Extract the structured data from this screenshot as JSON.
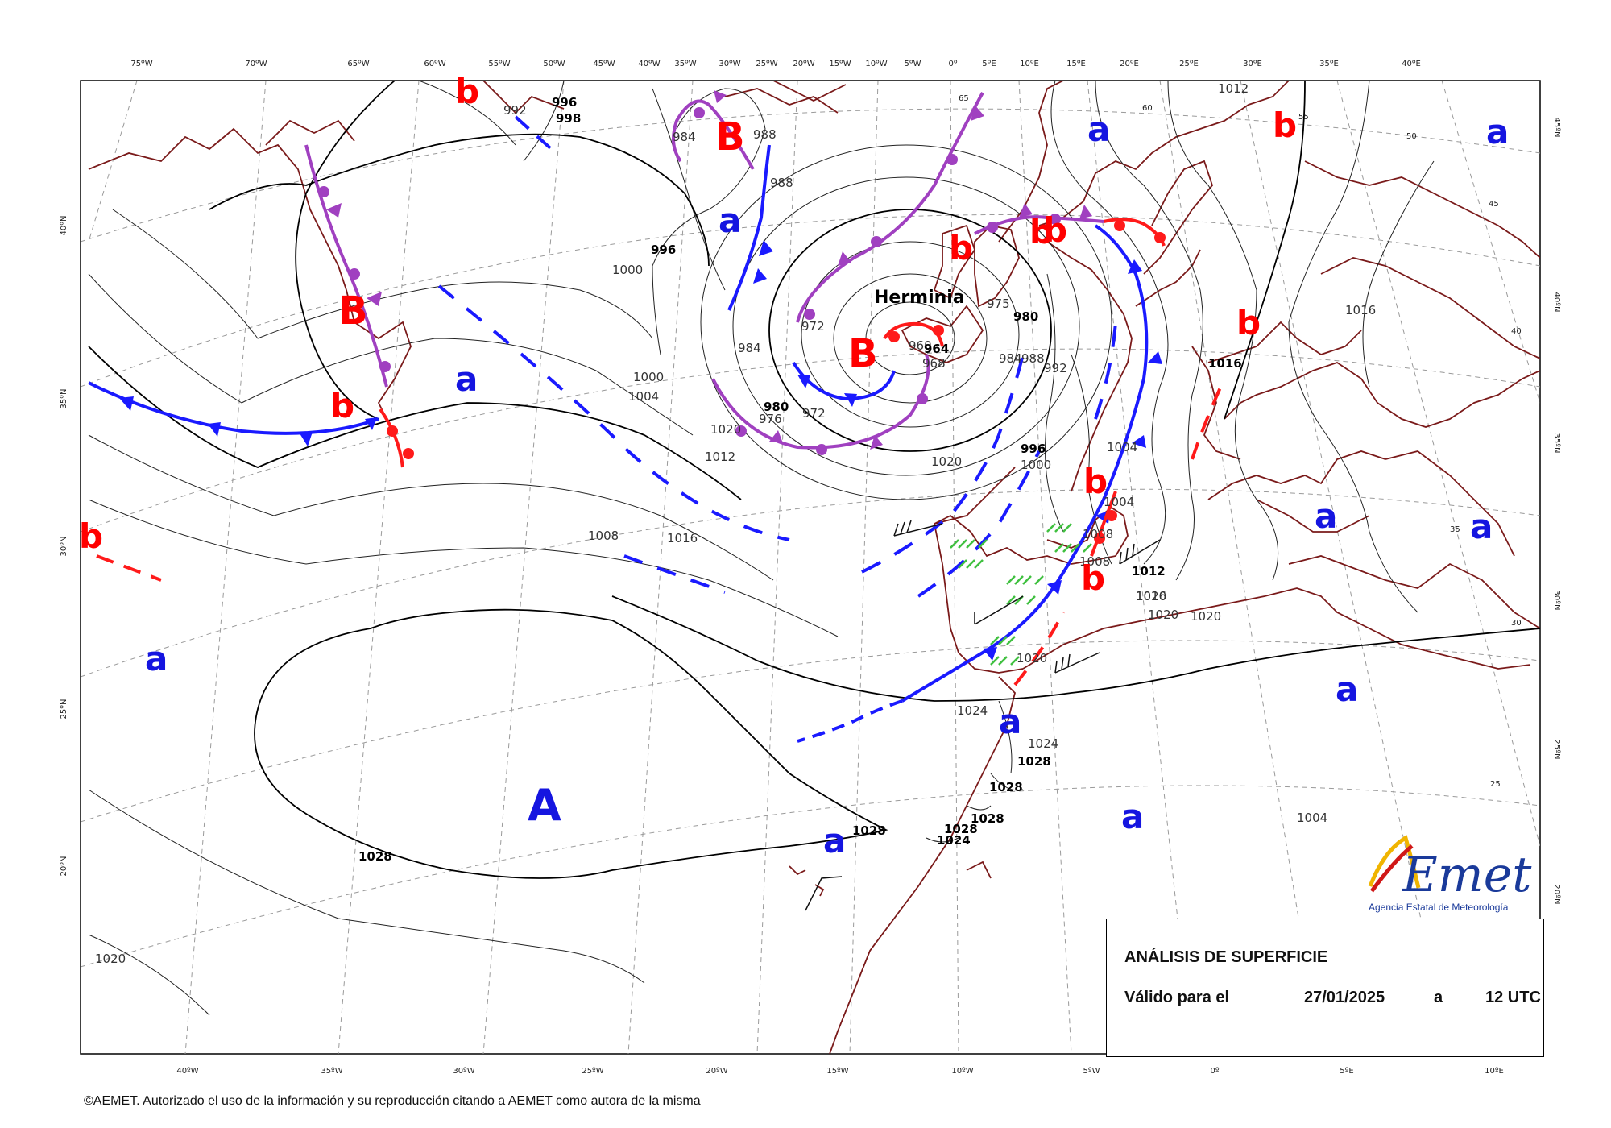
{
  "map": {
    "top_longitudes": [
      "75ºW",
      "70ºW",
      "65ºW",
      "60ºW",
      "55ºW",
      "50ºW",
      "45ºW",
      "40ºW",
      "35ºW",
      "30ºW",
      "25ºW",
      "20ºW",
      "15ºW",
      "10ºW",
      "5ºW",
      "0º",
      "5ºE",
      "10ºE",
      "15ºE",
      "20ºE",
      "25ºE",
      "30ºE",
      "35ºE",
      "40ºE"
    ],
    "bottom_longitudes": [
      "40ºW",
      "35ºW",
      "30ºW",
      "25ºW",
      "20ºW",
      "15ºW",
      "10ºW",
      "5ºW",
      "0º",
      "5ºE",
      "10ºE"
    ],
    "left_latitudes": [
      "40ºN",
      "35ºN",
      "30ºN",
      "25ºN",
      "20ºN"
    ],
    "right_latitudes": [
      "45ºN",
      "40ºN",
      "35ºN",
      "30ºN",
      "25ºN",
      "20ºN"
    ],
    "interior_grid_labels": [
      "65",
      "60",
      "55",
      "50",
      "45",
      "40",
      "35",
      "30",
      "25"
    ],
    "isobar_labels": [
      "992",
      "996",
      "998",
      "984",
      "988",
      "988",
      "996",
      "1000",
      "1000",
      "1004",
      "1008",
      "1012",
      "1016",
      "1020",
      "1020",
      "984",
      "980",
      "976",
      "972",
      "972",
      "975",
      "960",
      "964",
      "968",
      "980",
      "984",
      "988",
      "992",
      "996",
      "1000",
      "1004",
      "1004",
      "1008",
      "1008",
      "1012",
      "1016",
      "1020",
      "1024",
      "1024",
      "1020",
      "1028",
      "1028",
      "1028",
      "1028",
      "1028",
      "1028",
      "1024",
      "1004",
      "1012",
      "1016",
      "1020",
      "1020"
    ],
    "centres": {
      "low_major": [
        "B",
        "B",
        "B"
      ],
      "low_minor": [
        "b",
        "b",
        "b",
        "b",
        "b",
        "b",
        "b",
        "b",
        "b",
        "b"
      ],
      "high_major": [
        "A"
      ],
      "high_minor": [
        "a",
        "a",
        "a",
        "a",
        "a",
        "a",
        "a",
        "a",
        "a",
        "a",
        "a"
      ]
    },
    "storm_name": "Herminia",
    "colors": {
      "cold_front": "#1a1aff",
      "warm_front": "#ff1a1a",
      "occluded_front": "#a040c0",
      "coastline": "#7a1a1a",
      "precip": "#40c040",
      "low_label": "#ff0000",
      "high_label": "#1515e0"
    }
  },
  "info": {
    "title": "ANÁLISIS DE SUPERFICIE",
    "valid_label": "Válido para el",
    "date": "27/01/2025",
    "at": "a",
    "time": "12 UTC"
  },
  "logo": {
    "brand": "AEmet",
    "subtitle": "Agencia Estatal de Meteorología"
  },
  "footer": {
    "copyright": "©AEMET. Autorizado el uso de la información y su reproducción citando a AEMET como autora de la misma"
  }
}
